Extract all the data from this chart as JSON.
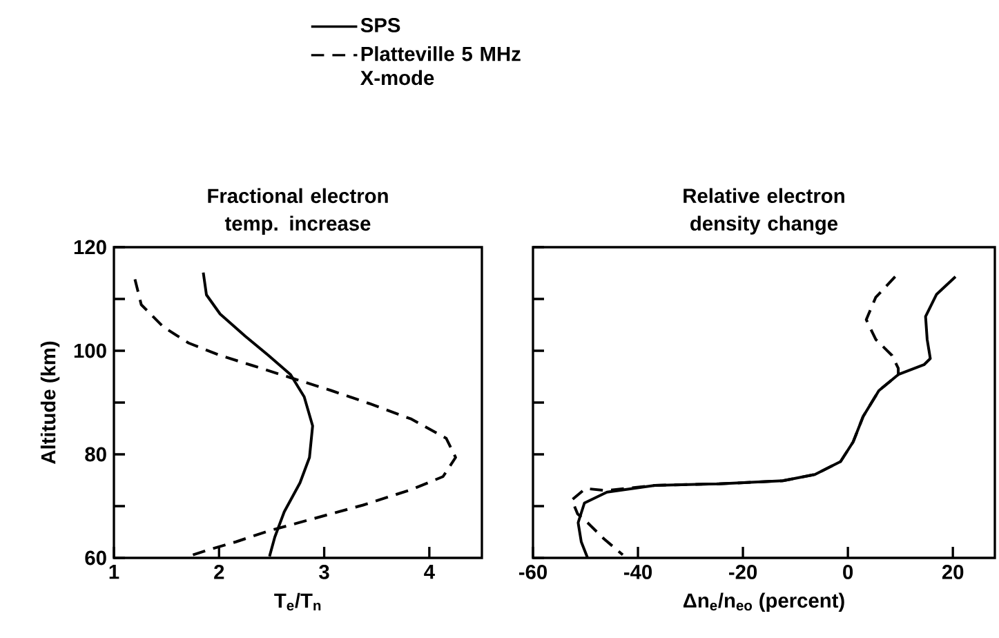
{
  "chart_data": [
    {
      "type": "line",
      "title": "Fractional electron temp. increase",
      "xlabel": "T$_{e}$/T$_{n}$",
      "ylabel": "Altitude (km)",
      "xlim": [
        1,
        4.5
      ],
      "ylim": [
        60,
        120
      ],
      "xticks": [
        1,
        2,
        3,
        4
      ],
      "yticks": [
        60,
        {
          "value": 70,
          "label": null
        },
        80,
        {
          "value": 90,
          "label": null
        },
        100,
        {
          "value": 110,
          "label": null
        },
        120
      ],
      "legend": "top",
      "grid": false,
      "series": [
        {
          "name": "SPS",
          "color": "#000000",
          "line_style": "solid",
          "x": [
            1.85,
            1.88,
            2.01,
            2.25,
            2.47,
            2.68,
            2.81,
            2.89,
            2.86,
            2.77,
            2.62,
            2.53,
            2.48
          ],
          "values": [
            115.1,
            110.8,
            107.1,
            102.8,
            99.1,
            95.4,
            91.1,
            85.5,
            79.4,
            74.5,
            68.9,
            64.0,
            60.3
          ]
        },
        {
          "name": "Platteville 5 MHz X-mode",
          "color": "#000000",
          "line_style": "dashed",
          "x": [
            1.2,
            1.26,
            1.47,
            1.71,
            2.01,
            2.31,
            2.68,
            3.07,
            3.43,
            3.83,
            4.16,
            4.25,
            4.13,
            3.83,
            3.37,
            2.92,
            2.47,
            2.16,
            1.89,
            1.71
          ],
          "values": [
            113.8,
            108.9,
            104.6,
            101.5,
            99.1,
            97.2,
            94.8,
            92.3,
            89.8,
            86.8,
            83.1,
            79.4,
            75.7,
            73.2,
            70.2,
            67.7,
            65.2,
            63.1,
            61.5,
            60.3
          ]
        }
      ]
    },
    {
      "type": "line",
      "title": "Relative electron density change",
      "xlabel": "Δn$_{e}$/n$_{eo}$ (percent)",
      "xlim": [
        -60,
        28
      ],
      "ylim": [
        60,
        120
      ],
      "xticks": [
        -60,
        -40,
        -20,
        0,
        20
      ],
      "yticks": [
        {
          "value": 60,
          "label": null
        },
        {
          "value": 70,
          "label": null
        },
        {
          "value": 80,
          "label": null
        },
        {
          "value": 90,
          "label": null
        },
        {
          "value": 100,
          "label": null
        },
        {
          "value": 110,
          "label": null
        },
        {
          "value": 120,
          "label": null
        }
      ],
      "tick_labels": "x",
      "grid": false,
      "series": [
        {
          "color": "#000000",
          "line_style": "solid",
          "x": [
            20.5,
            16.9,
            14.8,
            15.1,
            15.7,
            14.5,
            9.6,
            5.9,
            2.9,
            1.0,
            -1.4,
            -6.3,
            -12.4,
            -24.6,
            -36.8,
            -45.9,
            -50.2,
            -51.4,
            -50.8,
            -49.6
          ],
          "values": [
            114.3,
            110.9,
            106.6,
            102.2,
            98.5,
            97.3,
            95.4,
            92.3,
            87.3,
            82.4,
            78.6,
            76.1,
            74.9,
            74.3,
            74.0,
            72.7,
            70.6,
            66.8,
            63.1,
            60.0
          ]
        },
        {
          "color": "#000000",
          "line_style": "dashed",
          "x": [
            9.0,
            5.3,
            3.5,
            5.3,
            8.4,
            9.6,
            9.6,
            5.9,
            2.9,
            1.0,
            -1.4,
            -6.3,
            -12.4,
            -24.6,
            -36.8,
            -45.9,
            -50.0,
            -52.6,
            -51.5,
            -49.6,
            -46.5,
            -42.9
          ],
          "values": [
            114.3,
            110.3,
            106.0,
            102.2,
            99.1,
            96.6,
            95.4,
            92.3,
            87.3,
            82.4,
            78.6,
            76.1,
            74.9,
            74.3,
            74.0,
            73.0,
            73.4,
            71.2,
            68.5,
            66.8,
            63.7,
            60.6
          ]
        }
      ]
    }
  ]
}
